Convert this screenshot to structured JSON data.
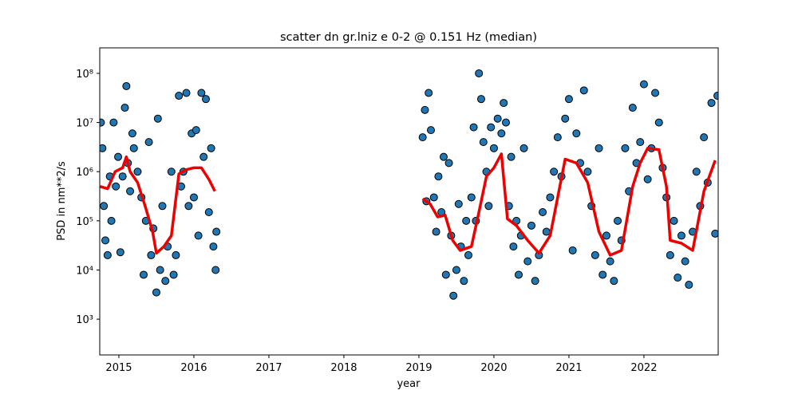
{
  "chart_data": {
    "type": "scatter",
    "title": "scatter dn gr.lniz e 0-2 @ 0.151 Hz (median)",
    "x_label": "year",
    "y_label": "PSD in nm**2/s",
    "xlim": [
      2014.745,
      2022.99
    ],
    "ylim": [
      187,
      330000000
    ],
    "log_y": true,
    "xticks": [
      2015,
      2016,
      2017,
      2018,
      2019,
      2020,
      2021,
      2022
    ],
    "yticks": [
      {
        "value": 1000,
        "label": "10³"
      },
      {
        "value": 10000,
        "label": "10⁴"
      },
      {
        "value": 100000,
        "label": "10⁵"
      },
      {
        "value": 1000000,
        "label": "10⁶"
      },
      {
        "value": 10000000,
        "label": "10⁷"
      },
      {
        "value": 100000000,
        "label": "10⁸"
      }
    ],
    "series": [
      {
        "type": "scatter",
        "color": "#1f77b4",
        "x": [
          2014.76,
          2014.78,
          2014.8,
          2014.82,
          2014.85,
          2014.88,
          2014.9,
          2014.93,
          2014.96,
          2014.99,
          2015.02,
          2015.05,
          2015.08,
          2015.1,
          2015.12,
          2015.15,
          2015.18,
          2015.2,
          2015.25,
          2015.3,
          2015.33,
          2015.36,
          2015.4,
          2015.43,
          2015.46,
          2015.5,
          2015.52,
          2015.55,
          2015.58,
          2015.62,
          2015.65,
          2015.7,
          2015.73,
          2015.76,
          2015.8,
          2015.83,
          2015.86,
          2015.9,
          2015.93,
          2015.97,
          2016.0,
          2016.03,
          2016.06,
          2016.1,
          2016.13,
          2016.16,
          2016.2,
          2016.23,
          2016.26,
          2016.29,
          2016.3,
          2019.05,
          2019.08,
          2019.1,
          2019.13,
          2019.16,
          2019.2,
          2019.23,
          2019.26,
          2019.3,
          2019.33,
          2019.36,
          2019.4,
          2019.43,
          2019.46,
          2019.5,
          2019.53,
          2019.56,
          2019.6,
          2019.63,
          2019.66,
          2019.7,
          2019.73,
          2019.76,
          2019.8,
          2019.83,
          2019.86,
          2019.9,
          2019.93,
          2019.96,
          2020.0,
          2020.05,
          2020.1,
          2020.13,
          2020.16,
          2020.2,
          2020.23,
          2020.26,
          2020.3,
          2020.33,
          2020.36,
          2020.4,
          2020.45,
          2020.5,
          2020.55,
          2020.6,
          2020.65,
          2020.7,
          2020.75,
          2020.8,
          2020.85,
          2020.9,
          2020.95,
          2021.0,
          2021.05,
          2021.1,
          2021.15,
          2021.2,
          2021.25,
          2021.3,
          2021.35,
          2021.4,
          2021.45,
          2021.5,
          2021.55,
          2021.6,
          2021.65,
          2021.7,
          2021.75,
          2021.8,
          2021.85,
          2021.9,
          2021.95,
          2022.0,
          2022.05,
          2022.1,
          2022.15,
          2022.2,
          2022.25,
          2022.3,
          2022.35,
          2022.4,
          2022.45,
          2022.5,
          2022.55,
          2022.6,
          2022.65,
          2022.7,
          2022.75,
          2022.8,
          2022.85,
          2022.9,
          2022.95,
          2022.98
        ],
        "values": [
          10000000,
          3000000,
          200000,
          40000,
          20000,
          800000,
          100000,
          10000000,
          500000,
          2000000,
          23000,
          800000,
          20000000,
          55000000,
          1500000,
          400000,
          6000000,
          3000000,
          1000000,
          300000,
          8000,
          100000,
          4000000,
          20000,
          70000,
          3500,
          12000000,
          10000,
          200000,
          6000,
          30000,
          1000000,
          8000,
          20000,
          35000000,
          500000,
          1000000,
          40000000,
          200000,
          6000000,
          300000,
          7000000,
          50000,
          40000000,
          2000000,
          30000000,
          150000,
          3000000,
          30000,
          10000,
          60000,
          5000000,
          18000000,
          250000,
          40000000,
          7000000,
          300000,
          60000,
          800000,
          150000,
          2000000,
          8000,
          1500000,
          50000,
          3000,
          10000,
          220000,
          30000,
          6000,
          100000,
          20000,
          300000,
          8000000,
          100000,
          100000000,
          30000000,
          4000000,
          1000000,
          200000,
          8000000,
          3000000,
          12000000,
          6000000,
          25000000,
          10000000,
          200000,
          2000000,
          30000,
          100000,
          8000,
          50000,
          3000000,
          15000,
          80000,
          6000,
          20000,
          150000,
          60000,
          300000,
          1000000,
          5000000,
          800000,
          12000000,
          30000000,
          25000,
          6000000,
          1500000,
          45000000,
          1000000,
          200000,
          20000,
          3000000,
          8000,
          50000,
          15000,
          6000,
          100000,
          40000,
          3000000,
          400000,
          20000000,
          1500000,
          4000000,
          60000000,
          700000,
          3000000,
          40000000,
          10000000,
          1200000,
          300000,
          20000,
          100000,
          7000,
          50000,
          15000,
          5000,
          60000,
          1000000,
          200000,
          5000000,
          600000,
          25000000,
          55000,
          35000000
        ]
      },
      {
        "type": "line",
        "color": "#ee0000",
        "x": [
          2014.75,
          2014.85,
          2014.95,
          2015.05,
          2015.1,
          2015.15,
          2015.25,
          2015.35,
          2015.45,
          2015.5,
          2015.6,
          2015.7,
          2015.8,
          2015.9,
          2016.0,
          2016.1,
          2016.2,
          2016.28,
          2017.5,
          2019.05,
          2019.15,
          2019.25,
          2019.35,
          2019.45,
          2019.55,
          2019.7,
          2019.8,
          2019.9,
          2020.0,
          2020.1,
          2020.18,
          2020.3,
          2020.45,
          2020.6,
          2020.75,
          2020.85,
          2020.95,
          2021.1,
          2021.25,
          2021.4,
          2021.55,
          2021.7,
          2021.85,
          2021.95,
          2022.05,
          2022.2,
          2022.3,
          2022.35,
          2022.5,
          2022.65,
          2022.8,
          2022.95
        ],
        "values": [
          500000,
          450000,
          1000000,
          1200000,
          2000000,
          1000000,
          600000,
          200000,
          60000,
          22000,
          30000,
          50000,
          900000,
          1100000,
          1200000,
          1200000,
          700000,
          400000,
          null,
          280000,
          220000,
          120000,
          130000,
          40000,
          25000,
          30000,
          150000,
          800000,
          1200000,
          2300000,
          110000,
          80000,
          40000,
          22000,
          50000,
          300000,
          1800000,
          1500000,
          600000,
          60000,
          20000,
          25000,
          500000,
          1500000,
          3000000,
          2800000,
          500000,
          40000,
          35000,
          25000,
          400000,
          1700000
        ]
      }
    ]
  }
}
